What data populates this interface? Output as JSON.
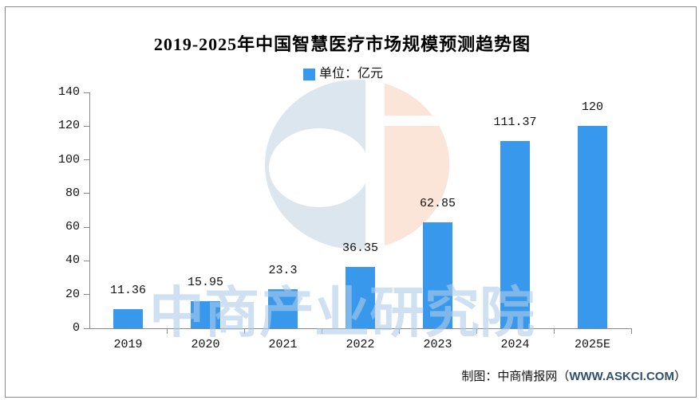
{
  "page": {
    "background": "#ffffff",
    "frame_color": "#8a8a8a"
  },
  "chart_data": {
    "type": "bar",
    "title": "2019-2025年中国智慧医疗市场规模预测趋势图",
    "legend": {
      "label": "单位：亿元",
      "swatch_color": "#3899ec",
      "position": "top-center"
    },
    "unit": "亿元",
    "categories": [
      "2019",
      "2020",
      "2021",
      "2022",
      "2023",
      "2024",
      "2025E"
    ],
    "values": [
      11.36,
      15.95,
      23.3,
      36.35,
      62.85,
      111.37,
      120
    ],
    "value_labels": [
      "11.36",
      "15.95",
      "23.3",
      "36.35",
      "62.85",
      "111.37",
      "120"
    ],
    "ylim": [
      0,
      140
    ],
    "yticks": [
      0,
      20,
      40,
      60,
      80,
      100,
      120,
      140
    ],
    "grid": false,
    "bar_color": "#3899ec",
    "axis_color": "#8a8a8a"
  },
  "watermark": {
    "text": "中商产业研究院",
    "text_color": "rgba(175,203,233,0.6)",
    "logo_blue": "#dbe6ef",
    "logo_peach": "#fbe4d8"
  },
  "footer": {
    "prefix": "制图：中商情报网（",
    "link": "WWW.ASKCI.COM",
    "suffix": "）",
    "link_color": "#31506e"
  }
}
